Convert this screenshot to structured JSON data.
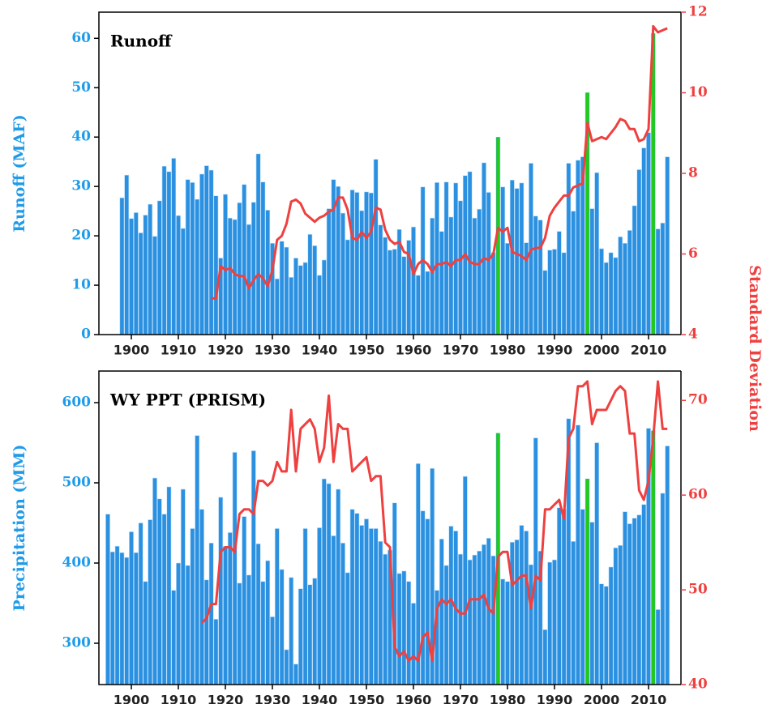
{
  "chart_data": [
    {
      "type": "bar",
      "title": "Runoff",
      "ylabel": "Runoff (MAF)",
      "y2label": "Standard Deviation",
      "x": [
        1898,
        1899,
        1900,
        1901,
        1902,
        1903,
        1904,
        1905,
        1906,
        1907,
        1908,
        1909,
        1910,
        1911,
        1912,
        1913,
        1914,
        1915,
        1916,
        1917,
        1918,
        1919,
        1920,
        1921,
        1922,
        1923,
        1924,
        1925,
        1926,
        1927,
        1928,
        1929,
        1930,
        1931,
        1932,
        1933,
        1934,
        1935,
        1936,
        1937,
        1938,
        1939,
        1940,
        1941,
        1942,
        1943,
        1944,
        1945,
        1946,
        1947,
        1948,
        1949,
        1950,
        1951,
        1952,
        1953,
        1954,
        1955,
        1956,
        1957,
        1958,
        1959,
        1960,
        1961,
        1962,
        1963,
        1964,
        1965,
        1966,
        1967,
        1968,
        1969,
        1970,
        1971,
        1972,
        1973,
        1974,
        1975,
        1976,
        1977,
        1978,
        1979,
        1980,
        1981,
        1982,
        1983,
        1984,
        1985,
        1986,
        1987,
        1988,
        1989,
        1990,
        1991,
        1992,
        1993,
        1994,
        1995,
        1996,
        1997,
        1998,
        1999,
        2000,
        2001,
        2002,
        2003,
        2004,
        2005,
        2006,
        2007,
        2008,
        2009,
        2010,
        2011,
        2012,
        2013,
        2014
      ],
      "xlim": [
        1893.1,
        2016.9
      ],
      "xticks": [
        1900,
        1910,
        1920,
        1930,
        1940,
        1950,
        1960,
        1970,
        1980,
        1990,
        2000,
        2010
      ],
      "ylim": [
        0,
        65.3
      ],
      "yticks": [
        0,
        10,
        20,
        30,
        40,
        50,
        60
      ],
      "y2lim": [
        4,
        12
      ],
      "y2ticks": [
        4,
        6,
        8,
        10,
        12
      ],
      "highlight": {
        "x": [
          1978,
          1997,
          2011
        ],
        "color": "#22cc11"
      },
      "series": [
        {
          "type": "bar",
          "color": "#2b90e0",
          "values": [
            27.7,
            32.3,
            23.5,
            24.7,
            20.6,
            24.2,
            26.4,
            19.9,
            27.1,
            34.1,
            33.0,
            35.7,
            24.1,
            21.5,
            31.4,
            30.8,
            27.4,
            32.5,
            34.2,
            33.3,
            28.1,
            15.5,
            28.4,
            23.6,
            23.3,
            26.7,
            30.4,
            22.3,
            26.8,
            36.6,
            30.9,
            25.2,
            18.5,
            11.3,
            18.9,
            17.7,
            11.6,
            15.5,
            14.0,
            14.6,
            20.3,
            18.0,
            12.0,
            15.1,
            25.5,
            31.4,
            30.0,
            24.6,
            19.2,
            29.3,
            28.8,
            25.1,
            28.9,
            28.7,
            35.5,
            22.2,
            19.7,
            17.1,
            17.3,
            21.3,
            15.8,
            19.1,
            21.8,
            12.0,
            29.9,
            12.8,
            23.6,
            30.8,
            20.9,
            30.9,
            23.8,
            30.7,
            27.1,
            32.2,
            33.0,
            23.6,
            25.4,
            34.8,
            28.8,
            16.6,
            40.0,
            29.9,
            18.5,
            31.3,
            29.6,
            30.7,
            18.6,
            34.7,
            24.0,
            23.2,
            13.0,
            17.1,
            17.3,
            20.9,
            16.6,
            34.7,
            25.0,
            35.3,
            36.0,
            49.0,
            25.5,
            32.8,
            17.4,
            14.6,
            16.6,
            15.6,
            19.8,
            18.5,
            21.1,
            26.1,
            33.4,
            37.8,
            40.9,
            61.0,
            21.4,
            22.6,
            36.0
          ]
        },
        {
          "type": "line",
          "axis": "y2",
          "color": "#ef4040",
          "values": [
            null,
            null,
            null,
            null,
            null,
            null,
            null,
            null,
            null,
            null,
            null,
            null,
            null,
            null,
            null,
            null,
            null,
            null,
            null,
            4.9,
            4.9,
            5.7,
            5.6,
            5.65,
            5.5,
            5.45,
            5.45,
            5.15,
            5.35,
            5.5,
            5.4,
            5.2,
            5.6,
            6.35,
            6.45,
            6.75,
            7.3,
            7.35,
            7.25,
            7.0,
            6.9,
            6.8,
            6.9,
            6.95,
            7.05,
            7.1,
            7.4,
            7.4,
            7.1,
            6.4,
            6.35,
            6.55,
            6.4,
            6.55,
            7.15,
            7.1,
            6.6,
            6.35,
            6.25,
            6.3,
            6.05,
            6.0,
            5.5,
            5.75,
            5.85,
            5.75,
            5.55,
            5.75,
            5.75,
            5.8,
            5.7,
            5.85,
            5.85,
            6.0,
            5.8,
            5.75,
            5.75,
            5.9,
            5.85,
            6.0,
            6.65,
            6.55,
            6.65,
            6.05,
            6.0,
            5.95,
            5.85,
            6.1,
            6.15,
            6.15,
            6.4,
            6.95,
            7.15,
            7.3,
            7.45,
            7.45,
            7.65,
            7.7,
            7.75,
            9.25,
            8.8,
            8.85,
            8.9,
            8.85,
            9.0,
            9.15,
            9.35,
            9.3,
            9.1,
            9.1,
            8.8,
            8.85,
            9.1,
            11.65,
            11.5,
            11.55,
            11.6
          ]
        }
      ]
    },
    {
      "type": "bar",
      "title": "WY PPT (PRISM)",
      "ylabel": "Precipitation (MM)",
      "x": [
        1895,
        1896,
        1897,
        1898,
        1899,
        1900,
        1901,
        1902,
        1903,
        1904,
        1905,
        1906,
        1907,
        1908,
        1909,
        1910,
        1911,
        1912,
        1913,
        1914,
        1915,
        1916,
        1917,
        1918,
        1919,
        1920,
        1921,
        1922,
        1923,
        1924,
        1925,
        1926,
        1927,
        1928,
        1929,
        1930,
        1931,
        1932,
        1933,
        1934,
        1935,
        1936,
        1937,
        1938,
        1939,
        1940,
        1941,
        1942,
        1943,
        1944,
        1945,
        1946,
        1947,
        1948,
        1949,
        1950,
        1951,
        1952,
        1953,
        1954,
        1955,
        1956,
        1957,
        1958,
        1959,
        1960,
        1961,
        1962,
        1963,
        1964,
        1965,
        1966,
        1967,
        1968,
        1969,
        1970,
        1971,
        1972,
        1973,
        1974,
        1975,
        1976,
        1977,
        1978,
        1979,
        1980,
        1981,
        1982,
        1983,
        1984,
        1985,
        1986,
        1987,
        1988,
        1989,
        1990,
        1991,
        1992,
        1993,
        1994,
        1995,
        1996,
        1997,
        1998,
        1999,
        2000,
        2001,
        2002,
        2003,
        2004,
        2005,
        2006,
        2007,
        2008,
        2009,
        2010,
        2011,
        2012,
        2013,
        2014
      ],
      "xlim": [
        1893.1,
        2016.9
      ],
      "xticks": [
        1900,
        1910,
        1920,
        1930,
        1940,
        1950,
        1960,
        1970,
        1980,
        1990,
        2000,
        2010
      ],
      "ylim": [
        248.5,
        639.4
      ],
      "yticks": [
        300,
        400,
        500,
        600
      ],
      "y2lim": [
        40,
        73.1
      ],
      "y2ticks": [
        40,
        50,
        60,
        70
      ],
      "highlight": {
        "x": [
          1978,
          1997,
          2011
        ],
        "color": "#22cc11"
      },
      "series": [
        {
          "type": "bar",
          "color": "#2b90e0",
          "values": [
            461,
            414,
            421,
            413,
            407,
            439,
            413,
            450,
            377,
            454,
            506,
            480,
            461,
            495,
            366,
            400,
            492,
            397,
            443,
            559,
            467,
            379,
            425,
            330,
            482,
            421,
            438,
            538,
            375,
            458,
            385,
            540,
            424,
            377,
            403,
            333,
            443,
            392,
            292,
            382,
            274,
            368,
            443,
            373,
            381,
            444,
            505,
            499,
            434,
            492,
            425,
            388,
            467,
            462,
            447,
            455,
            443,
            443,
            427,
            411,
            416,
            475,
            387,
            390,
            377,
            350,
            524,
            465,
            455,
            518,
            366,
            430,
            397,
            446,
            440,
            411,
            508,
            404,
            410,
            415,
            423,
            431,
            409,
            562,
            380,
            377,
            426,
            429,
            447,
            440,
            398,
            556,
            415,
            317,
            401,
            404,
            469,
            467,
            580,
            427,
            572,
            467,
            505,
            451,
            550,
            374,
            371,
            395,
            419,
            422,
            464,
            449,
            456,
            460,
            473,
            568,
            565,
            342,
            487,
            546
          ]
        },
        {
          "type": "line",
          "axis": "y2",
          "color": "#ef4040",
          "values": [
            null,
            null,
            null,
            null,
            null,
            null,
            null,
            null,
            null,
            null,
            null,
            null,
            null,
            null,
            null,
            null,
            null,
            null,
            null,
            null,
            46.5,
            47.0,
            48.5,
            48.5,
            54.0,
            54.5,
            54.5,
            54.0,
            58.0,
            58.5,
            58.5,
            58.0,
            61.5,
            61.5,
            61.0,
            61.5,
            63.5,
            62.5,
            62.5,
            69.0,
            62.5,
            67.0,
            67.5,
            68.0,
            67.0,
            63.5,
            65.0,
            70.5,
            63.5,
            67.5,
            67.0,
            67.0,
            62.5,
            63.0,
            63.5,
            64.0,
            61.5,
            62.0,
            62.0,
            55.0,
            54.5,
            44.0,
            43.0,
            43.5,
            42.5,
            43.0,
            42.5,
            45.0,
            45.5,
            42.5,
            48.0,
            49.0,
            48.5,
            49.0,
            48.0,
            47.5,
            47.5,
            49.0,
            49.0,
            49.0,
            49.5,
            48.0,
            47.5,
            53.5,
            54.0,
            54.0,
            50.5,
            51.0,
            51.5,
            51.5,
            48.0,
            51.5,
            51.0,
            58.5,
            58.5,
            59.0,
            59.5,
            57.5,
            66.0,
            67.0,
            71.5,
            71.5,
            72.0,
            67.5,
            69.0,
            69.0,
            69.0,
            70.0,
            71.0,
            71.5,
            71.0,
            66.5,
            66.5,
            60.5,
            59.5,
            61.5,
            66.0,
            72.0,
            67.0,
            67.0
          ]
        }
      ]
    }
  ]
}
